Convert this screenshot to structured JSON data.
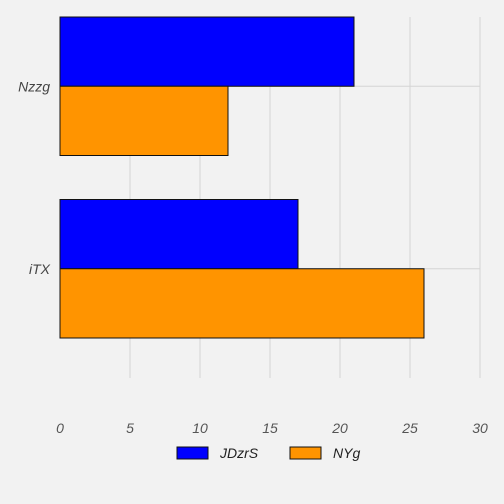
{
  "chart_data": {
    "type": "bar",
    "orientation": "horizontal",
    "categories": [
      "Nzzg",
      "iTX"
    ],
    "series": [
      {
        "name": "JDzrS",
        "color": "#0000ff",
        "values": [
          21,
          17
        ]
      },
      {
        "name": "NYg",
        "color": "#ff9400",
        "values": [
          12,
          26
        ]
      }
    ],
    "xlim": [
      0,
      30
    ],
    "xticks": [
      0,
      5,
      10,
      15,
      20,
      25,
      30
    ],
    "title": "",
    "xlabel": "",
    "ylabel": "",
    "grid": true,
    "legend_position": "bottom"
  }
}
